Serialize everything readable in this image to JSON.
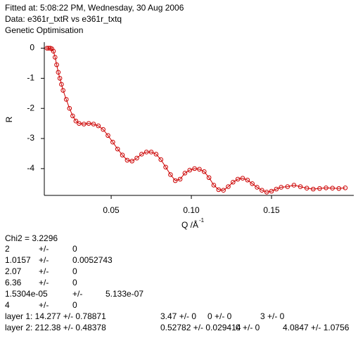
{
  "header": {
    "lines": [
      "Fitted at: 5:08:22 PM, Wednesday, 30 Aug 2006",
      "Data: e361r_txtR vs e361r_txtq",
      "Genetic Optimisation"
    ]
  },
  "chart_data": {
    "type": "scatter",
    "y_label": "R",
    "x_label": "Q /Å",
    "x_label_sup": "-1",
    "color": "#cc0000",
    "x": [
      0.01,
      0.011,
      0.012,
      0.013,
      0.014,
      0.015,
      0.016,
      0.017,
      0.018,
      0.019,
      0.02,
      0.022,
      0.024,
      0.026,
      0.028,
      0.03,
      0.033,
      0.036,
      0.039,
      0.042,
      0.045,
      0.048,
      0.051,
      0.054,
      0.057,
      0.06,
      0.063,
      0.066,
      0.069,
      0.072,
      0.075,
      0.078,
      0.081,
      0.084,
      0.087,
      0.09,
      0.093,
      0.096,
      0.099,
      0.102,
      0.105,
      0.108,
      0.111,
      0.114,
      0.117,
      0.12,
      0.123,
      0.126,
      0.129,
      0.132,
      0.135,
      0.138,
      0.141,
      0.144,
      0.147,
      0.15,
      0.153,
      0.156,
      0.16,
      0.164,
      0.168,
      0.172,
      0.176,
      0.18,
      0.184,
      0.188,
      0.192,
      0.196
    ],
    "y": [
      0.0,
      0.0,
      0.0,
      -0.02,
      -0.1,
      -0.3,
      -0.55,
      -0.8,
      -1.0,
      -1.2,
      -1.4,
      -1.7,
      -2.0,
      -2.25,
      -2.42,
      -2.5,
      -2.52,
      -2.5,
      -2.52,
      -2.58,
      -2.7,
      -2.9,
      -3.12,
      -3.35,
      -3.55,
      -3.72,
      -3.75,
      -3.65,
      -3.52,
      -3.45,
      -3.45,
      -3.52,
      -3.7,
      -3.95,
      -4.2,
      -4.4,
      -4.35,
      -4.15,
      -4.05,
      -4.0,
      -4.02,
      -4.1,
      -4.3,
      -4.55,
      -4.7,
      -4.72,
      -4.6,
      -4.45,
      -4.35,
      -4.32,
      -4.38,
      -4.5,
      -4.62,
      -4.72,
      -4.78,
      -4.75,
      -4.68,
      -4.62,
      -4.6,
      -4.55,
      -4.6,
      -4.65,
      -4.68,
      -4.66,
      -4.64,
      -4.65,
      -4.66,
      -4.64
    ],
    "xlim": [
      0.0083,
      0.2013
    ],
    "ylim": [
      -4.89,
      0.2
    ],
    "xticks": [
      0.05,
      {
        "value": 0.1,
        "label": "0.10"
      },
      0.15
    ],
    "yticks": [
      0,
      -1,
      -2,
      -3,
      -4
    ]
  },
  "results": {
    "chi2": "Chi2 = 3.2296",
    "params": [
      [
        "2",
        "+/-",
        "0"
      ],
      [
        "1.0157",
        "+/-",
        "0.0052743"
      ],
      [
        "2.07",
        "+/-",
        "0"
      ],
      [
        "6.36",
        "+/-",
        "0"
      ],
      [
        "1.5304e-05",
        "+/-",
        "5.133e-07"
      ],
      [
        "4",
        "+/-",
        "0"
      ]
    ],
    "layers": [
      [
        "layer 1: 14.277 +/- 0.78871",
        "3.47 +/- 0",
        "0 +/- 0",
        "3 +/- 0"
      ],
      [
        "layer 2: 212.38 +/- 0.48378",
        "0.52782 +/- 0.029414",
        "0 +/- 0",
        "4.0847 +/- 1.0756"
      ]
    ]
  }
}
